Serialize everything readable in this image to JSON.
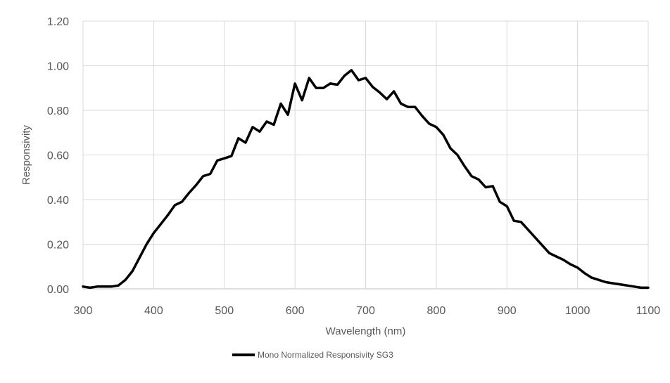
{
  "chart_data": {
    "type": "line",
    "title": "",
    "xlabel": "Wavelength (nm)",
    "ylabel": "Responsivity",
    "xlim": [
      300,
      1100
    ],
    "ylim": [
      0,
      1.2
    ],
    "xticks": [
      "300",
      "400",
      "500",
      "600",
      "700",
      "800",
      "900",
      "1000",
      "1100"
    ],
    "yticks": [
      "0.00",
      "0.20",
      "0.40",
      "0.60",
      "0.80",
      "1.00",
      "1.20"
    ],
    "grid": true,
    "legend_position": "bottom",
    "series": [
      {
        "name": "Mono Normalized Responsivity SG3",
        "color": "#000000",
        "points": [
          [
            300,
            0.01
          ],
          [
            310,
            0.005
          ],
          [
            320,
            0.01
          ],
          [
            330,
            0.01
          ],
          [
            340,
            0.01
          ],
          [
            350,
            0.015
          ],
          [
            360,
            0.04
          ],
          [
            370,
            0.08
          ],
          [
            380,
            0.14
          ],
          [
            390,
            0.2
          ],
          [
            400,
            0.25
          ],
          [
            410,
            0.29
          ],
          [
            420,
            0.33
          ],
          [
            430,
            0.375
          ],
          [
            440,
            0.39
          ],
          [
            450,
            0.43
          ],
          [
            460,
            0.465
          ],
          [
            470,
            0.505
          ],
          [
            480,
            0.515
          ],
          [
            490,
            0.575
          ],
          [
            500,
            0.585
          ],
          [
            510,
            0.595
          ],
          [
            520,
            0.675
          ],
          [
            530,
            0.655
          ],
          [
            540,
            0.725
          ],
          [
            550,
            0.705
          ],
          [
            560,
            0.75
          ],
          [
            570,
            0.735
          ],
          [
            580,
            0.83
          ],
          [
            590,
            0.78
          ],
          [
            600,
            0.92
          ],
          [
            610,
            0.845
          ],
          [
            620,
            0.945
          ],
          [
            630,
            0.9
          ],
          [
            640,
            0.9
          ],
          [
            650,
            0.92
          ],
          [
            660,
            0.915
          ],
          [
            670,
            0.955
          ],
          [
            680,
            0.98
          ],
          [
            690,
            0.935
          ],
          [
            700,
            0.945
          ],
          [
            710,
            0.905
          ],
          [
            720,
            0.88
          ],
          [
            730,
            0.85
          ],
          [
            740,
            0.885
          ],
          [
            750,
            0.83
          ],
          [
            760,
            0.815
          ],
          [
            770,
            0.815
          ],
          [
            780,
            0.775
          ],
          [
            790,
            0.74
          ],
          [
            800,
            0.725
          ],
          [
            810,
            0.69
          ],
          [
            820,
            0.63
          ],
          [
            830,
            0.6
          ],
          [
            840,
            0.55
          ],
          [
            850,
            0.505
          ],
          [
            860,
            0.49
          ],
          [
            870,
            0.455
          ],
          [
            880,
            0.46
          ],
          [
            890,
            0.39
          ],
          [
            900,
            0.37
          ],
          [
            910,
            0.305
          ],
          [
            920,
            0.3
          ],
          [
            930,
            0.265
          ],
          [
            940,
            0.23
          ],
          [
            950,
            0.195
          ],
          [
            960,
            0.16
          ],
          [
            970,
            0.145
          ],
          [
            980,
            0.13
          ],
          [
            990,
            0.11
          ],
          [
            1000,
            0.095
          ],
          [
            1010,
            0.07
          ],
          [
            1020,
            0.05
          ],
          [
            1030,
            0.04
          ],
          [
            1040,
            0.03
          ],
          [
            1050,
            0.025
          ],
          [
            1060,
            0.02
          ],
          [
            1070,
            0.015
          ],
          [
            1080,
            0.01
          ],
          [
            1090,
            0.005
          ],
          [
            1100,
            0.005
          ]
        ]
      }
    ]
  }
}
